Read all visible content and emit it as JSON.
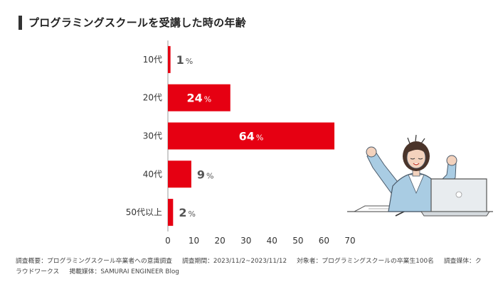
{
  "title": "プログラミングスクールを受講した時の年齢",
  "accent_color": "#e60012",
  "chart_data": {
    "type": "bar",
    "orientation": "horizontal",
    "title": "プログラミングスクールを受講した時の年齢",
    "categories": [
      "10代",
      "20代",
      "30代",
      "40代",
      "50代以上"
    ],
    "values": [
      1,
      24,
      64,
      9,
      2
    ],
    "value_suffix": "%",
    "xlim": [
      0,
      70
    ],
    "xticks": [
      0,
      10,
      20,
      30,
      40,
      50,
      60,
      70
    ],
    "xlabel": "",
    "ylabel": "",
    "grid": false,
    "legend": "none",
    "bar_color": "#e60012"
  },
  "footnote": {
    "survey_summary": "調査概要：プログラミングスクール卒業者への意識調査",
    "survey_period": "調査期間：2023/11/2~2023/11/12",
    "subjects": "対象者：プログラミングスクールの卒業生100名",
    "survey_medium": "調査媒体：クラウドワークス",
    "published_in": "掲載媒体：SAMURAI ENGINEER Blog"
  },
  "illustration": "woman-stretching-at-laptop"
}
